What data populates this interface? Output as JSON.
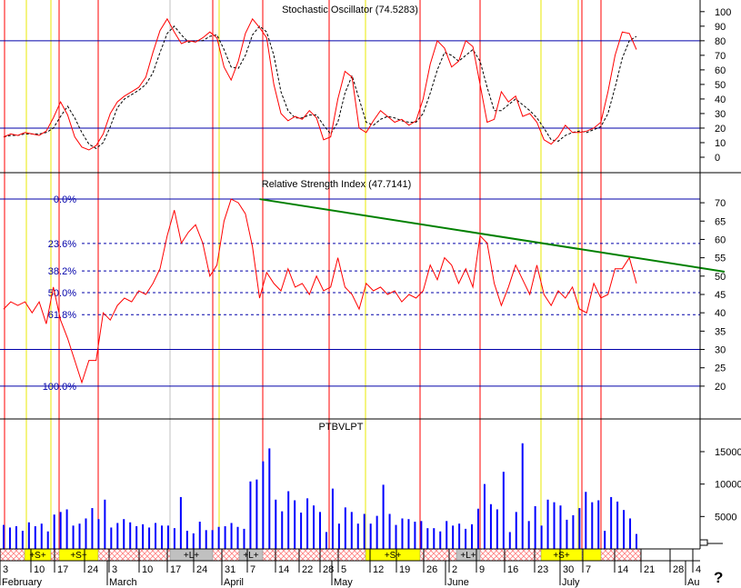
{
  "chart_data": {
    "type": "line",
    "colors": {
      "price_line": "#ff0000",
      "signal_line": "#000000",
      "guide_line": "#0000aa",
      "event_line_red": "#ff0000",
      "event_line_yellow": "#e8e800",
      "event_line_gray": "#c0c0c0",
      "trendline": "#008000",
      "volume": "#0000ff",
      "signal_box_yellow": "#ffff00",
      "signal_box_gray": "#c0c0c0",
      "hatch": "#ff8080"
    },
    "x_axis": {
      "date_ticks": [
        "3",
        "10",
        "17",
        "24",
        "3",
        "10",
        "17",
        "24",
        "31",
        "7",
        "14",
        "22",
        "28",
        "5",
        "12",
        "19",
        "26",
        "2",
        "9",
        "16",
        "23",
        "30",
        "7",
        "14",
        "21",
        "28",
        "4"
      ],
      "month_labels": [
        "February",
        "March",
        "April",
        "May",
        "June",
        "July",
        "Au"
      ],
      "question_mark": "?"
    },
    "panels": [
      {
        "id": "stochastic",
        "title": "Stochastic Oscillator (74.5283)",
        "ylim": [
          -5,
          103
        ],
        "y_ticks": [
          0,
          10,
          20,
          30,
          40,
          50,
          60,
          70,
          80,
          90,
          100
        ],
        "guide_levels": [
          80,
          20
        ],
        "series": [
          {
            "role": "%K",
            "style": "solid",
            "values": [
              14,
              16,
              15,
              17,
              16,
              15,
              18,
              27,
              38,
              29,
              14,
              7,
              5,
              8,
              16,
              30,
              38,
              42,
              45,
              48,
              55,
              72,
              87,
              95,
              86,
              78,
              80,
              79,
              82,
              86,
              82,
              62,
              53,
              66,
              85,
              95,
              89,
              82,
              50,
              30,
              25,
              28,
              26,
              32,
              27,
              12,
              14,
              40,
              59,
              55,
              20,
              17,
              25,
              32,
              28,
              24,
              26,
              22,
              25,
              40,
              64,
              80,
              75,
              62,
              66,
              80,
              76,
              50,
              24,
              26,
              45,
              38,
              42,
              28,
              30,
              24,
              12,
              9,
              14,
              22,
              17,
              17,
              18,
              20,
              24,
              45,
              70,
              86,
              85,
              74
            ]
          },
          {
            "role": "%D",
            "style": "dashed",
            "values": [
              14,
              15,
              15,
              16,
              16,
              16,
              17,
              20,
              28,
              35,
              27,
              17,
              9,
              6,
              10,
              21,
              34,
              40,
              43,
              46,
              50,
              58,
              72,
              85,
              90,
              84,
              79,
              80,
              80,
              83,
              84,
              74,
              62,
              61,
              70,
              84,
              90,
              86,
              70,
              45,
              32,
              27,
              27,
              29,
              29,
              22,
              16,
              24,
              44,
              56,
              40,
              24,
              22,
              26,
              28,
              27,
              25,
              24,
              24,
              30,
              44,
              60,
              72,
              70,
              66,
              70,
              74,
              66,
              48,
              32,
              32,
              36,
              40,
              36,
              32,
              27,
              20,
              12,
              11,
              15,
              17,
              18,
              17,
              19,
              21,
              30,
              48,
              68,
              80,
              83
            ]
          }
        ]
      },
      {
        "id": "rsi",
        "title": "Relative Strength Index (47.7141)",
        "ylim": [
          17,
          72.5
        ],
        "y_ticks": [
          20,
          25,
          30,
          35,
          40,
          45,
          50,
          55,
          60,
          65,
          70
        ],
        "guide_levels": [
          71,
          30,
          20
        ],
        "fibonacci_levels": [
          {
            "label": "0.0%",
            "value": 71
          },
          {
            "label": "23.6%",
            "value": 58.9
          },
          {
            "label": "38.2%",
            "value": 51.4
          },
          {
            "label": "50.0%",
            "value": 45.5
          },
          {
            "label": "61.8%",
            "value": 39.5
          },
          {
            "label": "100.0%",
            "value": 20
          }
        ],
        "trendline": {
          "from": [
            36,
            71
          ],
          "to": [
            101.4,
            51.2
          ]
        },
        "series": [
          {
            "role": "RSI",
            "style": "solid",
            "values": [
              41,
              43,
              42,
              43,
              40,
              43,
              37,
              47,
              38,
              33,
              27,
              21,
              27,
              27,
              40,
              38,
              42,
              44,
              43,
              46,
              45,
              48,
              52,
              61,
              68,
              59,
              62,
              64,
              59,
              50,
              53,
              65,
              71,
              70,
              67,
              58,
              44,
              51,
              48,
              46,
              52,
              47,
              48,
              45,
              50,
              46,
              47,
              55,
              47,
              45,
              41,
              48,
              46,
              47,
              45,
              46,
              43,
              45,
              44,
              46,
              53,
              49,
              55,
              53,
              48,
              52,
              47,
              61,
              59,
              48,
              42,
              47,
              53,
              49,
              45,
              53,
              45,
              42,
              46,
              44,
              47,
              41,
              40,
              48,
              44,
              45,
              52,
              52,
              55,
              48
            ]
          }
        ]
      },
      {
        "id": "volume",
        "title": "PTBVLPT",
        "ylim": [
          0,
          17800
        ],
        "y_ticks": [
          5000,
          10000,
          15000
        ],
        "series": [
          {
            "role": "volume",
            "style": "bars",
            "values": [
              3700,
              3300,
              3500,
              2800,
              4100,
              3500,
              3900,
              2700,
              5300,
              5700,
              6100,
              3600,
              3900,
              4700,
              6300,
              4600,
              7600,
              3300,
              4000,
              4600,
              4100,
              3500,
              3800,
              3300,
              4000,
              3600,
              3600,
              3200,
              8000,
              2800,
              2400,
              4200,
              2900,
              2900,
              3400,
              3500,
              4000,
              3400,
              3100,
              10400,
              10700,
              13500,
              15500,
              7600,
              5800,
              8900,
              7500,
              5600,
              7800,
              6700,
              5700,
              2600,
              9300,
              3900,
              6400,
              5700,
              3900,
              5400,
              3900,
              5100,
              9900,
              5400,
              3700,
              4700,
              4600,
              4200,
              4300,
              3200,
              3200,
              2700,
              4300,
              3600,
              3900,
              3100,
              3800,
              6200,
              10000,
              6900,
              6100,
              11900,
              2600,
              5700,
              16300,
              4300,
              6600,
              3600,
              7600,
              7200,
              6700,
              4500,
              5200,
              6300,
              8800,
              7200,
              7500,
              2800,
              8000,
              7300,
              6000,
              4700,
              2300
            ]
          }
        ]
      }
    ],
    "signal_boxes": [
      {
        "text": "+S+",
        "kind": "yellow"
      },
      {
        "text": "+S+",
        "kind": "yellow"
      },
      {
        "text": "+L+",
        "kind": "gray"
      },
      {
        "text": "+L+",
        "kind": "gray"
      },
      {
        "text": "+S+",
        "kind": "yellow"
      },
      {
        "text": "+L+",
        "kind": "gray"
      },
      {
        "text": "+S+",
        "kind": "yellow"
      }
    ]
  }
}
